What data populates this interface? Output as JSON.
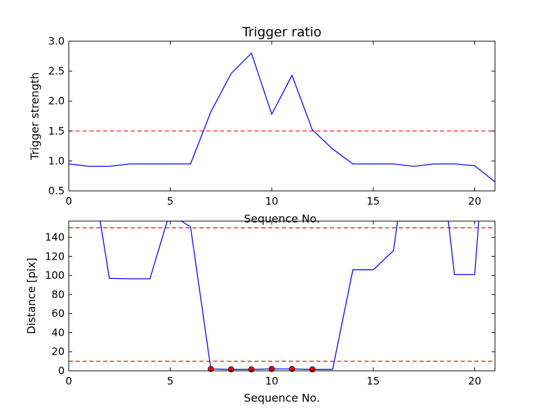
{
  "chart_data": [
    {
      "type": "line",
      "title": "Trigger ratio",
      "xlabel": "Sequence No.",
      "ylabel": "Trigger strength",
      "xlim": [
        0,
        21
      ],
      "ylim": [
        0.5,
        3.0
      ],
      "xticks": [
        0,
        5,
        10,
        15,
        20
      ],
      "yticks": [
        0.5,
        1.0,
        1.5,
        2.0,
        2.5,
        3.0
      ],
      "ytick_labels": [
        "0.5",
        "1.0",
        "1.5",
        "2.0",
        "2.5",
        "3.0"
      ],
      "grid": false,
      "line_color": "#0000ff",
      "threshold_color": "#ff0000",
      "series": [
        {
          "x": [
            0,
            1,
            2,
            3,
            4,
            5,
            6,
            7,
            8,
            9,
            10,
            11,
            12,
            13,
            14,
            15,
            16,
            17,
            18,
            19,
            20,
            21
          ],
          "values": [
            0.95,
            0.91,
            0.91,
            0.95,
            0.95,
            0.95,
            0.95,
            1.82,
            2.46,
            2.8,
            1.78,
            2.43,
            1.52,
            1.2,
            0.95,
            0.95,
            0.95,
            0.91,
            0.95,
            0.95,
            0.92,
            0.65
          ]
        }
      ],
      "hlines": [
        1.5
      ]
    },
    {
      "type": "line",
      "title": "",
      "xlabel": "Sequence No.",
      "ylabel": "Distance [pix]",
      "xlim": [
        0,
        21
      ],
      "ylim": [
        0,
        157
      ],
      "xticks": [
        0,
        5,
        10,
        15,
        20
      ],
      "yticks": [
        0,
        20,
        40,
        60,
        80,
        100,
        120,
        140
      ],
      "ytick_labels": [
        "0",
        "20",
        "40",
        "60",
        "80",
        "100",
        "120",
        "140"
      ],
      "grid": false,
      "line_color": "#0000ff",
      "threshold_color": "#ff0000",
      "marker_color": "#ff0000",
      "series": [
        {
          "x": [
            1.55,
            2,
            3,
            4,
            4.85,
            5.55,
            6,
            7,
            8,
            9,
            10,
            11,
            12,
            13,
            14,
            15,
            16,
            16.2,
            18.7,
            19,
            20,
            20.2
          ],
          "values": [
            157,
            97,
            96.5,
            96.5,
            157,
            157,
            151,
            2,
            1.5,
            1.5,
            2,
            2,
            1.5,
            1.5,
            106,
            106,
            126,
            157,
            157,
            101,
            101,
            157
          ]
        }
      ],
      "markers": {
        "x": [
          7,
          8,
          9,
          10,
          11,
          12
        ],
        "values": [
          2,
          1.5,
          1.5,
          2,
          2,
          1.5
        ]
      },
      "hlines": [
        150,
        10
      ]
    }
  ]
}
